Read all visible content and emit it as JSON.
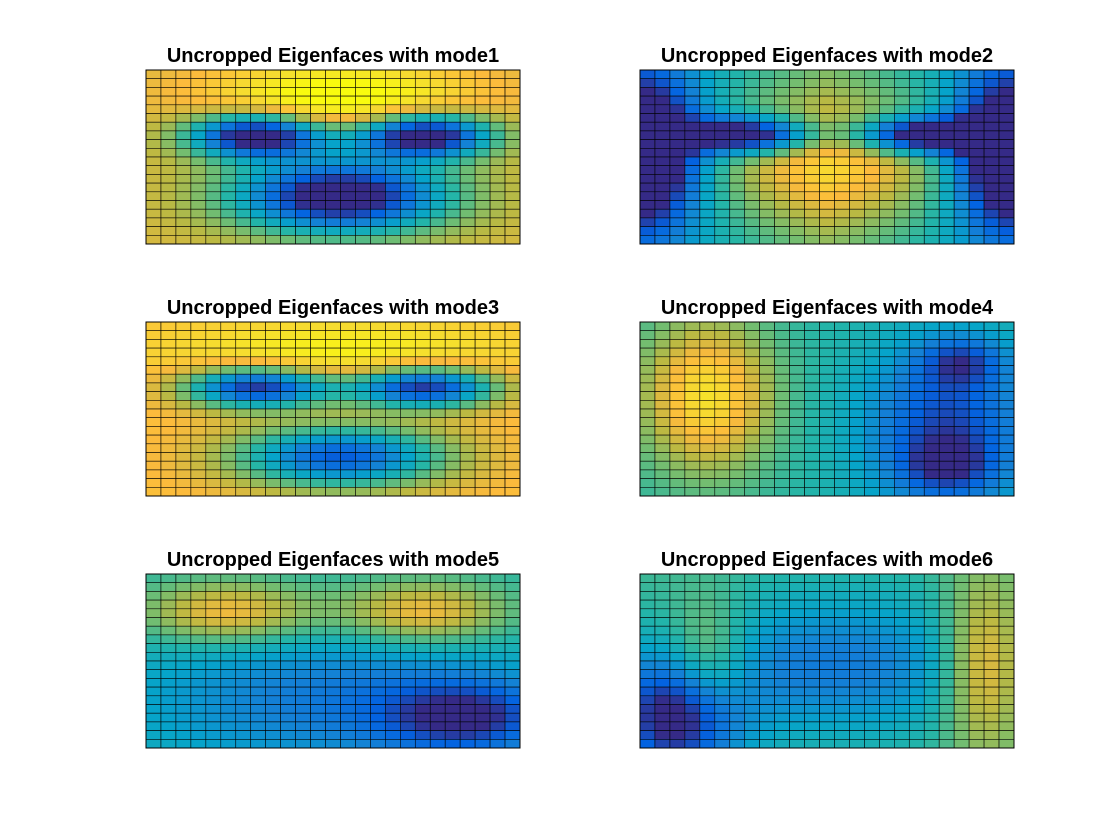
{
  "chart_data": [
    {
      "type": "heatmap",
      "title": "Uncropped Eigenfaces with mode1",
      "colormap": "parula",
      "grid": true,
      "gridcolor": "#000000",
      "blobs": [
        {
          "r": 7,
          "c": 7,
          "sr": 1.8,
          "sc": 3.2,
          "a": -0.9
        },
        {
          "r": 7,
          "c": 18,
          "sr": 1.8,
          "sc": 3.2,
          "a": -0.9
        },
        {
          "r": 14,
          "c": 12.5,
          "sr": 3,
          "sc": 5,
          "a": -0.85
        },
        {
          "r": 3,
          "c": 12.5,
          "sr": 3,
          "sc": 6,
          "a": 0.35
        }
      ],
      "base": 0.72,
      "edge": [
        0.0,
        -0.1
      ]
    },
    {
      "type": "heatmap",
      "title": "Uncropped Eigenfaces with mode2",
      "colormap": "parula",
      "grid": true,
      "gridcolor": "#000000",
      "blobs": [
        {
          "r": 9,
          "c": 0,
          "sr": 6,
          "sc": 2.5,
          "a": -0.65
        },
        {
          "r": 9,
          "c": 24,
          "sr": 6,
          "sc": 2.5,
          "a": -0.65
        },
        {
          "r": 7,
          "c": 7,
          "sr": 1.5,
          "sc": 3,
          "a": -0.7
        },
        {
          "r": 7,
          "c": 18,
          "sr": 1.5,
          "sc": 3,
          "a": -0.7
        },
        {
          "r": 10,
          "c": 12.5,
          "sr": 5,
          "sc": 6,
          "a": 0.35
        }
      ],
      "base": 0.55,
      "edge": [
        -0.25,
        0.0
      ]
    },
    {
      "type": "heatmap",
      "title": "Uncropped Eigenfaces with mode3",
      "colormap": "parula",
      "grid": true,
      "gridcolor": "#000000",
      "blobs": [
        {
          "r": 7,
          "c": 7,
          "sr": 1.7,
          "sc": 3.5,
          "a": -0.85
        },
        {
          "r": 7,
          "c": 18,
          "sr": 1.7,
          "sc": 3.5,
          "a": -0.85
        },
        {
          "r": 15,
          "c": 12.5,
          "sr": 2.5,
          "sc": 5,
          "a": -0.7
        },
        {
          "r": 4,
          "c": 12.5,
          "sr": 3,
          "sc": 8,
          "a": 0.2
        }
      ],
      "base": 0.8,
      "edge": [
        0.0,
        0.0
      ]
    },
    {
      "type": "heatmap",
      "title": "Uncropped Eigenfaces with mode4",
      "colormap": "parula",
      "grid": true,
      "gridcolor": "#000000",
      "blobs": [
        {
          "r": 8,
          "c": 4,
          "sr": 6,
          "sc": 3,
          "a": 0.45
        },
        {
          "r": 12,
          "c": 20,
          "sr": 7,
          "sc": 4,
          "a": -0.4
        },
        {
          "r": 4,
          "c": 21,
          "sr": 2,
          "sc": 2,
          "a": -0.25
        },
        {
          "r": 16,
          "c": 20,
          "sr": 2,
          "sc": 2,
          "a": -0.2
        }
      ],
      "base": 0.45,
      "edge": [
        0.0,
        0.0
      ]
    },
    {
      "type": "heatmap",
      "title": "Uncropped Eigenfaces with mode5",
      "colormap": "parula",
      "grid": true,
      "gridcolor": "#000000",
      "blobs": [
        {
          "r": 4,
          "c": 5,
          "sr": 2.5,
          "sc": 4,
          "a": 0.35
        },
        {
          "r": 4,
          "c": 18,
          "sr": 2.5,
          "sc": 4,
          "a": 0.35
        },
        {
          "r": 16,
          "c": 21,
          "sr": 3,
          "sc": 4,
          "a": -0.35
        },
        {
          "r": 14,
          "c": 12,
          "sr": 6,
          "sc": 10,
          "a": -0.25
        }
      ],
      "base": 0.45,
      "edge": [
        0.0,
        0.0
      ]
    },
    {
      "type": "heatmap",
      "title": "Uncropped Eigenfaces with mode6",
      "colormap": "parula",
      "grid": true,
      "gridcolor": "#000000",
      "blobs": [
        {
          "r": 10,
          "c": 12.5,
          "sr": 6,
          "sc": 8,
          "a": -0.3
        },
        {
          "r": 16,
          "c": 2,
          "sr": 5,
          "sc": 3,
          "a": -0.55
        },
        {
          "r": 10,
          "c": 22.5,
          "sr": 7,
          "sc": 2,
          "a": 0.35
        },
        {
          "r": 10,
          "c": 4,
          "sr": 5,
          "sc": 2,
          "a": 0.3
        }
      ],
      "base": 0.5,
      "edge": [
        0.0,
        0.0
      ]
    }
  ]
}
